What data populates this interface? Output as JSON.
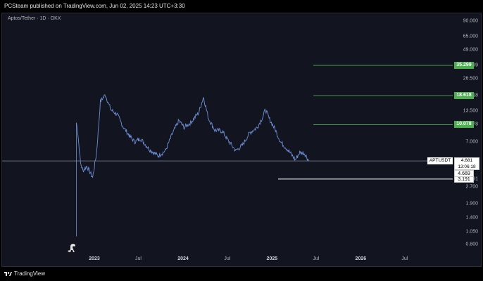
{
  "header": {
    "text": "PCSteam published on TradingView.com, Jun 02, 2025 14:23 UTC+3:30"
  },
  "footer": {
    "brand": "TradingView"
  },
  "chart_data": {
    "type": "line",
    "symbol_line": "Aptos/Tether · 1D · OKX",
    "yscale": "log",
    "ylim": [
      0.7,
      100
    ],
    "yticks": [
      "90.000",
      "65.000",
      "49.000",
      "35.299",
      "26.500",
      "18.618",
      "13.500",
      "10.078",
      "7.000",
      "4.681",
      "4.669",
      "3.191",
      "2.700",
      "1.900",
      "1.400",
      "1.050",
      "0.800"
    ],
    "xticks": [
      "2023",
      "Jul",
      "2024",
      "Jul",
      "2025",
      "Jul",
      "2026",
      "Jul"
    ],
    "x": [
      "2022-10-19",
      "2022-10-25",
      "2022-11-05",
      "2022-11-15",
      "2022-12-01",
      "2022-12-25",
      "2023-01-10",
      "2023-01-26",
      "2023-02-15",
      "2023-03-10",
      "2023-04-05",
      "2023-05-01",
      "2023-05-25",
      "2023-06-15",
      "2023-07-10",
      "2023-08-15",
      "2023-09-20",
      "2023-10-20",
      "2023-11-20",
      "2023-12-15",
      "2024-01-05",
      "2024-02-01",
      "2024-03-05",
      "2024-03-25",
      "2024-04-15",
      "2024-05-10",
      "2024-06-10",
      "2024-07-05",
      "2024-08-05",
      "2024-09-01",
      "2024-10-01",
      "2024-11-01",
      "2024-11-25",
      "2024-12-05",
      "2024-12-20",
      "2025-01-15",
      "2025-02-05",
      "2025-03-05",
      "2025-04-07",
      "2025-04-25",
      "2025-05-15",
      "2025-06-02"
    ],
    "values": [
      10.5,
      8.5,
      4.5,
      3.8,
      4.2,
      3.3,
      5.5,
      16.5,
      19.0,
      13.8,
      12.5,
      9.5,
      8.0,
      7.0,
      7.5,
      6.0,
      5.2,
      5.8,
      8.5,
      11.0,
      9.5,
      10.5,
      13.0,
      18.0,
      11.5,
      9.0,
      8.8,
      7.2,
      5.8,
      6.5,
      8.5,
      9.5,
      12.0,
      14.0,
      11.5,
      9.0,
      7.0,
      6.0,
      4.8,
      5.6,
      5.5,
      4.68
    ],
    "levels": [
      {
        "label": "35.299",
        "value": 35.299,
        "color": "#4caf50"
      },
      {
        "label": "18.618",
        "value": 18.618,
        "color": "#4caf50"
      },
      {
        "label": "10.078",
        "value": 10.078,
        "color": "#4caf50"
      },
      {
        "label": "3.191",
        "value": 3.191,
        "color": "#ffffff"
      }
    ],
    "price_line": {
      "value": 4.681
    },
    "symbol_tag": "APTUSDT",
    "last_price": "4.681",
    "countdown": "13:06:18",
    "prev_price": "4.669",
    "colors": {
      "line": "#6f8fd8",
      "bg": "#12151f"
    }
  }
}
